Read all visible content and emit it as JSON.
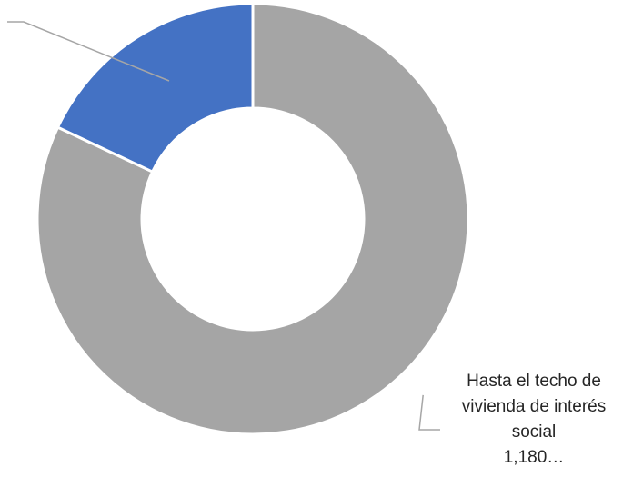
{
  "chart_data": {
    "type": "pie",
    "variant": "donut",
    "slices": [
      {
        "label": "Hasta el techo de vivienda de interés social",
        "value_label": "1,180…",
        "share": 0.82,
        "color": "#a5a5a5"
      },
      {
        "label": "",
        "value_label": "",
        "share": 0.18,
        "color": "#4472c4"
      }
    ],
    "labels": [
      {
        "lines": [
          "Hasta el techo de",
          "vivienda de interés",
          "social"
        ],
        "value": "1,180…"
      }
    ],
    "title": "",
    "legend": "none"
  }
}
